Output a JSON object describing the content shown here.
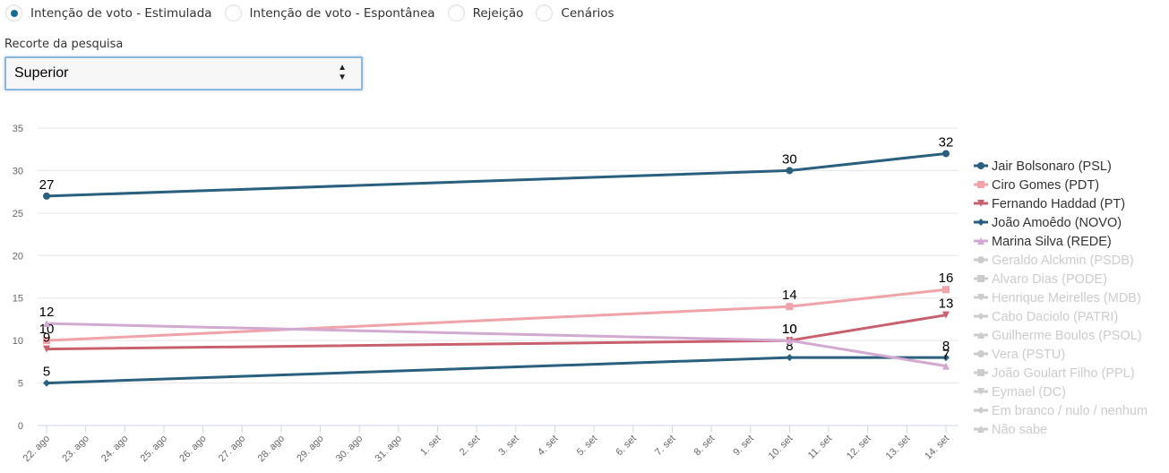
{
  "tabs": [
    {
      "label": "Intenção de voto - Estimulada",
      "checked": true
    },
    {
      "label": "Intenção de voto - Espontânea",
      "checked": false
    },
    {
      "label": "Rejeição",
      "checked": false
    },
    {
      "label": "Cenários",
      "checked": false
    }
  ],
  "filter": {
    "label": "Recorte da pesquisa",
    "selected": "Superior",
    "arrows": "▲▼"
  },
  "chart_data": {
    "type": "line",
    "title": "",
    "xlabel": "",
    "ylabel": "",
    "ylim": [
      0,
      35
    ],
    "yticks": [
      0,
      5,
      10,
      15,
      20,
      25,
      30,
      35
    ],
    "grid": true,
    "legend_position": "right",
    "x_tick_labels": [
      "22. ago",
      "23. ago",
      "24. ago",
      "25. ago",
      "26. ago",
      "27. ago",
      "28. ago",
      "29. ago",
      "30. ago",
      "31. ago",
      "1. set",
      "2. set",
      "3. set",
      "4. set",
      "5. set",
      "6. set",
      "7. set",
      "8. set",
      "9. set",
      "10. set",
      "11. set",
      "12. set",
      "13. set",
      "14. set"
    ],
    "x": [
      "22. ago",
      "10. set",
      "14. set"
    ],
    "series": [
      {
        "name": "Jair Bolsonaro (PSL)",
        "color": "#2b5f7f",
        "marker": "circle",
        "visible": true,
        "values": [
          27,
          30,
          32
        ]
      },
      {
        "name": "Ciro Gomes (PDT)",
        "color": "#f0a3a8",
        "marker": "square",
        "visible": true,
        "values": [
          10,
          14,
          16
        ]
      },
      {
        "name": "Fernando Haddad (PT)",
        "color": "#c9606e",
        "marker": "triangle-down",
        "visible": true,
        "values": [
          9,
          10,
          13
        ]
      },
      {
        "name": "João Amoêdo (NOVO)",
        "color": "#2b5f7f",
        "marker": "diamond",
        "visible": true,
        "values": [
          5,
          8,
          8
        ]
      },
      {
        "name": "Marina Silva (REDE)",
        "color": "#d1a9d1",
        "marker": "triangle",
        "visible": true,
        "values": [
          12,
          10,
          7
        ]
      },
      {
        "name": "Geraldo Alckmin (PSDB)",
        "color": "#cccccc",
        "marker": "circle",
        "visible": false,
        "values": []
      },
      {
        "name": "Alvaro Dias (PODE)",
        "color": "#cccccc",
        "marker": "square",
        "visible": false,
        "values": []
      },
      {
        "name": "Henrique Meirelles (MDB)",
        "color": "#cccccc",
        "marker": "triangle-down",
        "visible": false,
        "values": []
      },
      {
        "name": "Cabo Daciolo (PATRI)",
        "color": "#cccccc",
        "marker": "diamond",
        "visible": false,
        "values": []
      },
      {
        "name": "Guilherme Boulos (PSOL)",
        "color": "#cccccc",
        "marker": "triangle",
        "visible": false,
        "values": []
      },
      {
        "name": "Vera (PSTU)",
        "color": "#cccccc",
        "marker": "circle",
        "visible": false,
        "values": []
      },
      {
        "name": "João Goulart Filho (PPL)",
        "color": "#cccccc",
        "marker": "square",
        "visible": false,
        "values": []
      },
      {
        "name": "Eymael (DC)",
        "color": "#cccccc",
        "marker": "triangle-down",
        "visible": false,
        "values": []
      },
      {
        "name": "Em branco / nulo / nenhum",
        "color": "#cccccc",
        "marker": "diamond",
        "visible": false,
        "values": []
      },
      {
        "name": "Não sabe",
        "color": "#cccccc",
        "marker": "triangle",
        "visible": false,
        "values": []
      }
    ]
  }
}
